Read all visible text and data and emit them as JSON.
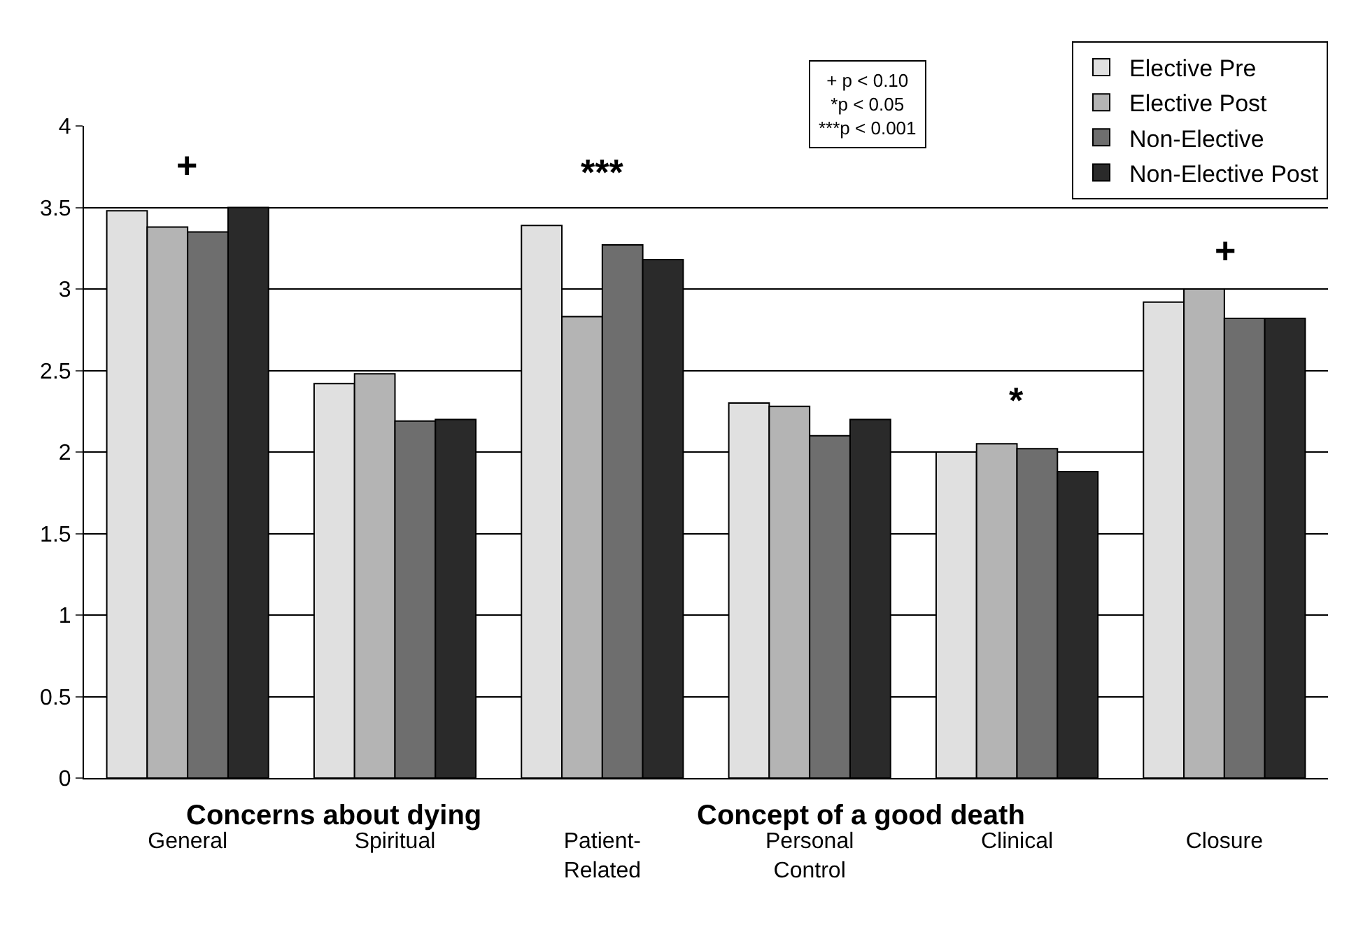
{
  "chart_data": {
    "type": "bar",
    "categories": [
      "General",
      "Spiritual",
      "Patient-\nRelated",
      "Personal\nControl",
      "Clinical",
      "Closure"
    ],
    "series": [
      {
        "name": "Elective Pre",
        "color": "#e0e0e0",
        "values": [
          3.48,
          2.42,
          3.39,
          2.3,
          2.0,
          2.92
        ]
      },
      {
        "name": "Elective Post",
        "color": "#b4b4b4",
        "values": [
          3.38,
          2.48,
          2.83,
          2.28,
          2.05,
          3.0
        ]
      },
      {
        "name": "Non-Elective",
        "color": "#6e6e6e",
        "values": [
          3.35,
          2.19,
          3.27,
          2.1,
          2.02,
          2.82
        ]
      },
      {
        "name": "Non-Elective Post",
        "color": "#2a2a2a",
        "values": [
          3.5,
          2.2,
          3.18,
          2.2,
          1.88,
          2.82
        ]
      }
    ],
    "ylim": [
      0,
      4
    ],
    "yticks": [
      0,
      0.5,
      1,
      1.5,
      2,
      2.5,
      3,
      3.5,
      4
    ],
    "grid": "y",
    "legend": "top right",
    "annotations": [
      "+",
      "***",
      "*",
      "+",
      "Concerns about dying",
      "Concept of a good death",
      "+ p < 0.10\n*p < 0.05\n***p < 0.001"
    ]
  }
}
